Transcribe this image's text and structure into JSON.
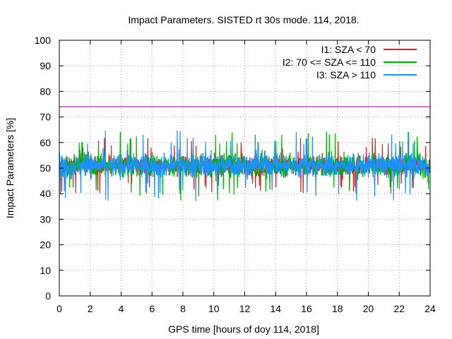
{
  "chart_data": {
    "type": "line",
    "title": "Impact Parameters. SISTED rt 30s mode. 114, 2018.",
    "xlabel": "GPS time [hours of doy 114, 2018]",
    "ylabel": "Impact Parameters [%]",
    "xlim": [
      0,
      24
    ],
    "ylim": [
      0,
      100
    ],
    "x_ticks": [
      "0",
      "2",
      "4",
      "6",
      "8",
      "10",
      "12",
      "14",
      "16",
      "18",
      "20",
      "22",
      "24"
    ],
    "y_ticks": [
      "0",
      "10",
      "20",
      "30",
      "40",
      "50",
      "60",
      "70",
      "80",
      "90",
      "100"
    ],
    "grid": true,
    "legend_position": "top-right",
    "reference_line": {
      "y": 74,
      "color": "#8b008b"
    },
    "series": [
      {
        "name": "I1: SZA < 70",
        "color": "#e41a1c",
        "x_range": [
          0,
          24
        ],
        "mean": 51,
        "min": 38,
        "max": 62
      },
      {
        "name": "I2: 70 <= SZA <= 110",
        "color": "#00b000",
        "x_range": [
          0,
          24
        ],
        "mean": 51,
        "min": 37,
        "max": 66
      },
      {
        "name": "I3: SZA > 110",
        "color": "#1e90ff",
        "x_range": [
          0,
          24
        ],
        "mean": 51,
        "min": 31,
        "max": 65
      }
    ]
  }
}
